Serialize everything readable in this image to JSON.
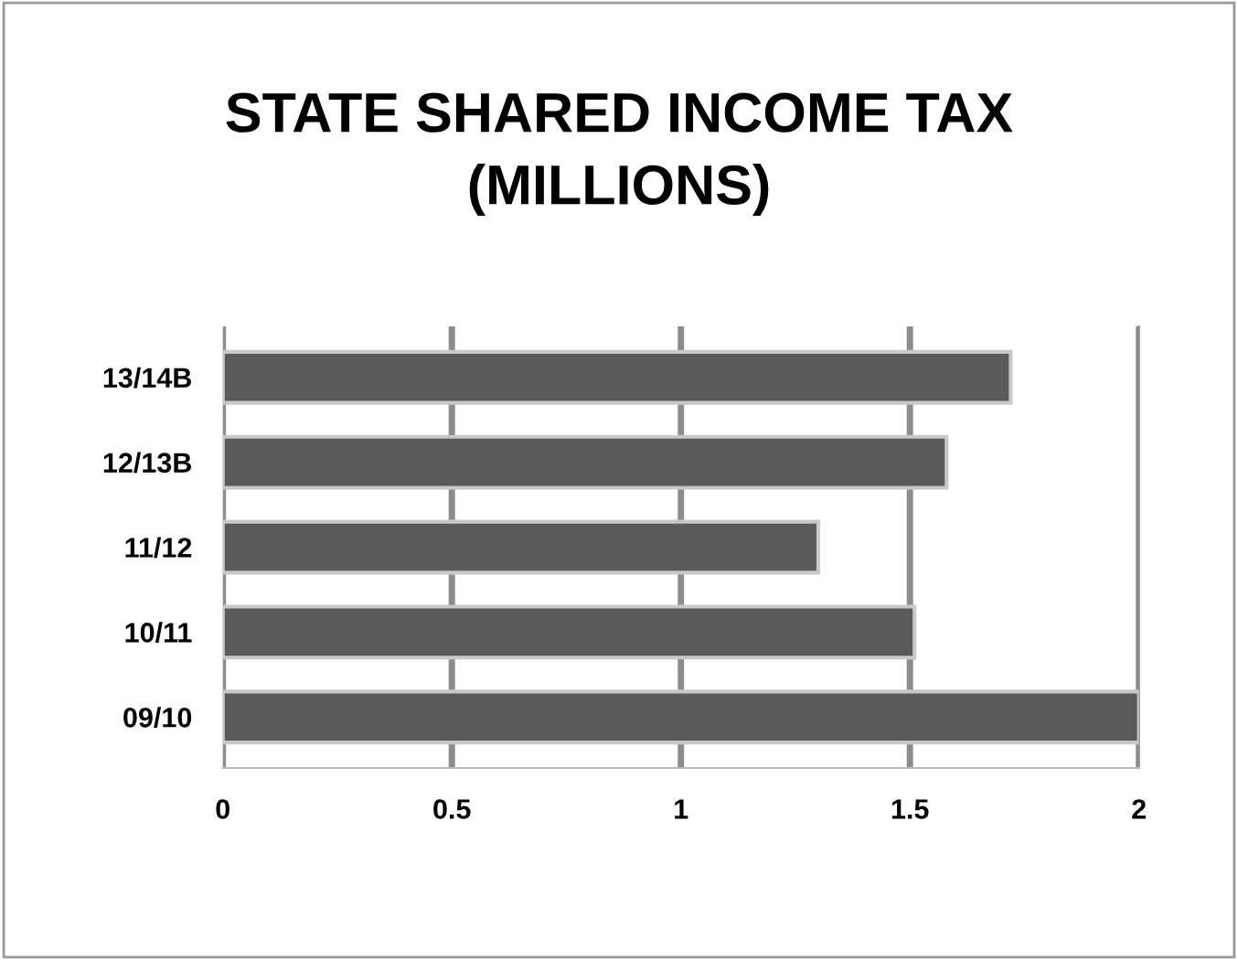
{
  "chart_data": {
    "type": "bar",
    "orientation": "horizontal",
    "title": "STATE SHARED INCOME TAX\n(MILLIONS)",
    "categories": [
      "13/14B",
      "12/13B",
      "11/12",
      "10/11",
      "09/10"
    ],
    "values": [
      1.72,
      1.58,
      1.3,
      1.51,
      2.0
    ],
    "color": "#5a5a5a",
    "xlim": [
      0,
      2
    ],
    "xticks": [
      0,
      0.5,
      1,
      1.5,
      2
    ],
    "grid": "x",
    "legend": false
  }
}
